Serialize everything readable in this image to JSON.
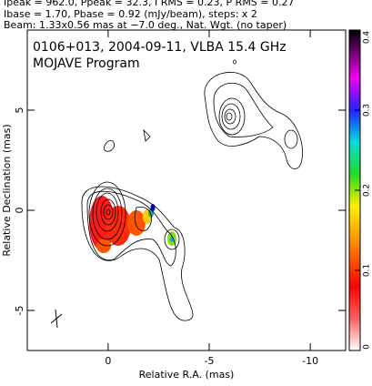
{
  "chart_data": {
    "type": "contour",
    "header": [
      "Ipeak = 962.0, Ppeak = 32.3, I RMS = 0.23, P RMS = 0.27",
      "Ibase = 1.70, Pbase = 0.92 (mJy/beam), steps: x 2",
      "Beam: 1.33x0.56 mas at −7.0 deg., Nat. Wgt. (no taper)"
    ],
    "title": "0106+013, 2004-09-11, VLBA 15.4 GHz",
    "subtitle": "MOJAVE Program",
    "xlabel": "Relative R.A. (mas)",
    "ylabel": "Relative Declination (mas)",
    "xlim": [
      4,
      -11.75
    ],
    "xticks": [
      0,
      -5,
      -10
    ],
    "ylim": [
      -7,
      9
    ],
    "yticks": [
      -5,
      0,
      5
    ],
    "colorbar": {
      "lim": [
        0,
        0.4
      ],
      "ticks": [
        0,
        0.1,
        0.2,
        0.3,
        0.4
      ]
    }
  }
}
